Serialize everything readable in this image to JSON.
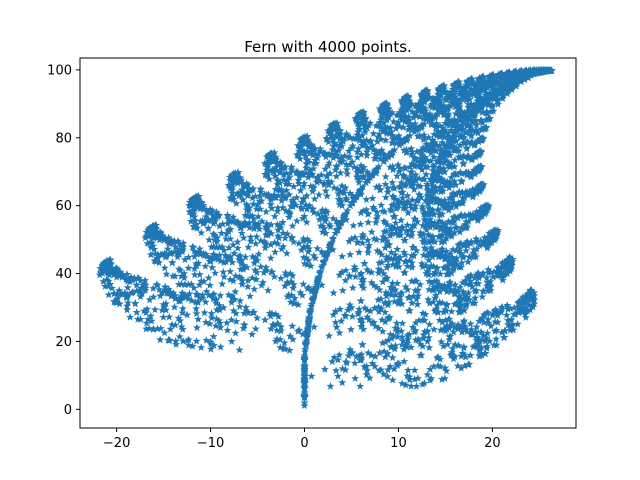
{
  "chart_data": {
    "type": "scatter",
    "title": "Fern with 4000 points.",
    "xlabel": "",
    "ylabel": "",
    "xlim": [
      -23.9,
      28.9
    ],
    "ylim": [
      -5.5,
      103.5
    ],
    "x_ticks": [
      -20,
      -10,
      0,
      10,
      20
    ],
    "y_ticks": [
      0,
      20,
      40,
      60,
      80,
      100
    ],
    "grid": false,
    "legend": "none",
    "marker": "star",
    "n_points": 4000,
    "generator": {
      "description": "Barnsley fern iterated function system",
      "transforms": [
        {
          "a": 0.0,
          "b": 0.0,
          "c": 0.0,
          "d": 0.16,
          "e": 0.0,
          "f": 0.0,
          "p": 0.01
        },
        {
          "a": 0.85,
          "b": 0.04,
          "c": -0.04,
          "d": 0.85,
          "e": 0.0,
          "f": 1.6,
          "p": 0.85
        },
        {
          "a": 0.2,
          "b": -0.26,
          "c": 0.23,
          "d": 0.22,
          "e": 0.0,
          "f": 1.6,
          "p": 0.07
        },
        {
          "a": -0.15,
          "b": 0.28,
          "c": 0.26,
          "d": 0.24,
          "e": 0.0,
          "f": 0.44,
          "p": 0.07
        }
      ],
      "x_scale": 10,
      "y_scale": 10
    },
    "colors": {
      "points": "#1f77b4",
      "axes": "#000000",
      "background": "#ffffff"
    }
  }
}
